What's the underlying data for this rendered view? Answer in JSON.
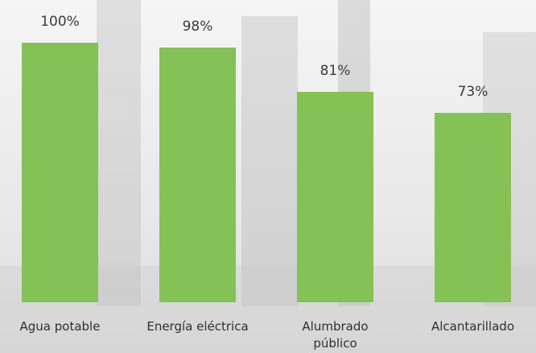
{
  "chart_data": {
    "type": "bar",
    "categories": [
      "Agua potable",
      "Energía eléctrica",
      "Alumbrado público",
      "Alcantarillado"
    ],
    "category_lines": [
      [
        "Agua potable"
      ],
      [
        "Energía eléctrica"
      ],
      [
        "Alumbrado",
        "público"
      ],
      [
        "Alcantarillado"
      ]
    ],
    "values": [
      100,
      98,
      81,
      73
    ],
    "value_labels": [
      "100%",
      "98%",
      "81%",
      "73%"
    ],
    "ylim": [
      0,
      100
    ],
    "bar_color": "#85c255",
    "grid": false,
    "legend": "none"
  }
}
